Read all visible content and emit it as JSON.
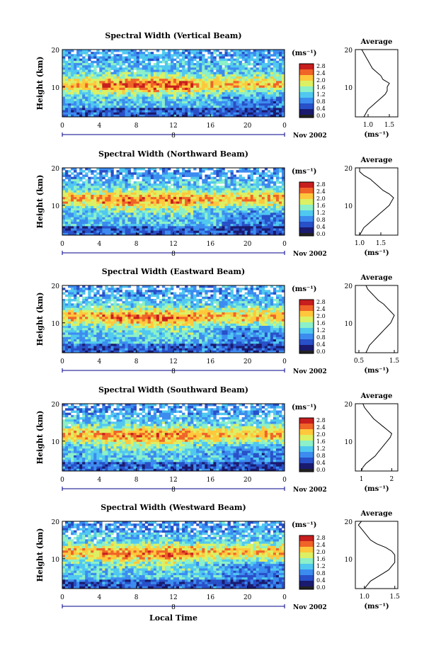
{
  "figure": {
    "xlabel_bottom": "Local Time",
    "unit_label": "(ms⁻¹)",
    "colorbar_ticks": [
      "2.8",
      "2.4",
      "2.0",
      "1.6",
      "1.2",
      "0.8",
      "0.4",
      "0.0"
    ],
    "date_label": "Nov 2002",
    "x_ticks": [
      "0",
      "4",
      "8",
      "12",
      "16",
      "20",
      "0"
    ],
    "day_marker": "8",
    "height_label": "Height (km)",
    "height_ticks": [
      "20",
      "10"
    ],
    "average_title": "Average",
    "average_xlabel": "(ms⁻¹)",
    "colormap": [
      "#1a1a6e",
      "#2850c8",
      "#3c8cf0",
      "#50c8f0",
      "#8cf0c8",
      "#dcf064",
      "#ffc83c",
      "#f06428",
      "#c81e1e"
    ]
  },
  "chart_data": [
    {
      "type": "heatmap",
      "title": "Spectral Width (Vertical Beam)",
      "xlabel": "",
      "ylabel": "Height (km)",
      "xlim": [
        0,
        24
      ],
      "ylim": [
        2,
        20
      ],
      "colorbar": {
        "label": "(ms⁻¹)",
        "range": [
          0,
          3.0
        ]
      },
      "profile": {
        "title": "Average",
        "xlabel": "(ms⁻¹)",
        "xticks": [
          "1.0",
          "1.5"
        ],
        "xlim": [
          0.7,
          1.7
        ],
        "heights": [
          2,
          3,
          4,
          5,
          6,
          7,
          8,
          9,
          10,
          11,
          12,
          13,
          14,
          15,
          16,
          17,
          18,
          19,
          20
        ],
        "values": [
          0.9,
          0.95,
          1.0,
          1.1,
          1.2,
          1.3,
          1.4,
          1.45,
          1.45,
          1.5,
          1.35,
          1.3,
          1.2,
          1.1,
          1.05,
          1.0,
          0.95,
          0.9,
          0.85
        ]
      }
    },
    {
      "type": "heatmap",
      "title": "Spectral Width (Northward Beam)",
      "xlabel": "",
      "ylabel": "Height (km)",
      "xlim": [
        0,
        24
      ],
      "ylim": [
        2,
        20
      ],
      "colorbar": {
        "label": "(ms⁻¹)",
        "range": [
          0,
          3.0
        ]
      },
      "profile": {
        "title": "Average",
        "xlabel": "(ms⁻¹)",
        "xticks": [
          "1.0",
          "1.5"
        ],
        "xlim": [
          0.9,
          1.9
        ],
        "heights": [
          2,
          3,
          4,
          5,
          6,
          7,
          8,
          9,
          10,
          11,
          12,
          13,
          14,
          15,
          16,
          17,
          18,
          19,
          20
        ],
        "values": [
          1.0,
          1.05,
          1.1,
          1.2,
          1.3,
          1.4,
          1.5,
          1.6,
          1.7,
          1.75,
          1.8,
          1.7,
          1.55,
          1.45,
          1.35,
          1.25,
          1.1,
          1.0,
          1.0
        ]
      }
    },
    {
      "type": "heatmap",
      "title": "Spectral Width (Eastward Beam)",
      "xlabel": "",
      "ylabel": "Height (km)",
      "xlim": [
        0,
        24
      ],
      "ylim": [
        2,
        20
      ],
      "colorbar": {
        "label": "(ms⁻¹)",
        "range": [
          0,
          3.0
        ]
      },
      "profile": {
        "title": "Average",
        "xlabel": "(ms⁻¹)",
        "xticks": [
          "0.5",
          "1.5"
        ],
        "xlim": [
          0.4,
          1.6
        ],
        "heights": [
          2,
          3,
          4,
          5,
          6,
          7,
          8,
          9,
          10,
          11,
          12,
          13,
          14,
          15,
          16,
          17,
          18,
          19,
          20
        ],
        "values": [
          0.7,
          0.75,
          0.8,
          0.9,
          1.0,
          1.1,
          1.2,
          1.3,
          1.4,
          1.45,
          1.5,
          1.4,
          1.3,
          1.2,
          1.05,
          0.95,
          0.85,
          0.75,
          0.7
        ]
      }
    },
    {
      "type": "heatmap",
      "title": "Spectral Width (Southward Beam)",
      "xlabel": "",
      "ylabel": "Height (km)",
      "xlim": [
        0,
        24
      ],
      "ylim": [
        2,
        20
      ],
      "colorbar": {
        "label": "(ms⁻¹)",
        "range": [
          0,
          3.0
        ]
      },
      "profile": {
        "title": "Average",
        "xlabel": "(ms⁻¹)",
        "xticks": [
          "1",
          "2"
        ],
        "xlim": [
          0.8,
          2.2
        ],
        "heights": [
          2,
          3,
          4,
          5,
          6,
          7,
          8,
          9,
          10,
          11,
          12,
          13,
          14,
          15,
          16,
          17,
          18,
          19,
          20
        ],
        "values": [
          1.0,
          1.05,
          1.15,
          1.3,
          1.45,
          1.55,
          1.65,
          1.75,
          1.85,
          1.95,
          2.0,
          1.85,
          1.7,
          1.55,
          1.4,
          1.3,
          1.2,
          1.1,
          1.05
        ]
      }
    },
    {
      "type": "heatmap",
      "title": "Spectral Width (Westward Beam)",
      "xlabel": "Local Time",
      "ylabel": "Height (km)",
      "xlim": [
        0,
        24
      ],
      "ylim": [
        2,
        20
      ],
      "colorbar": {
        "label": "(ms⁻¹)",
        "range": [
          0,
          3.0
        ]
      },
      "profile": {
        "title": "Average",
        "xlabel": "(ms⁻¹)",
        "xticks": [
          "1.0",
          "1.5"
        ],
        "xlim": [
          0.85,
          1.55
        ],
        "heights": [
          2,
          3,
          4,
          5,
          6,
          7,
          8,
          9,
          10,
          11,
          12,
          13,
          14,
          15,
          16,
          17,
          18,
          19,
          20
        ],
        "values": [
          1.0,
          1.05,
          1.1,
          1.2,
          1.3,
          1.4,
          1.45,
          1.5,
          1.5,
          1.5,
          1.45,
          1.35,
          1.2,
          1.1,
          1.05,
          1.0,
          0.95,
          0.9,
          0.95
        ]
      }
    }
  ]
}
